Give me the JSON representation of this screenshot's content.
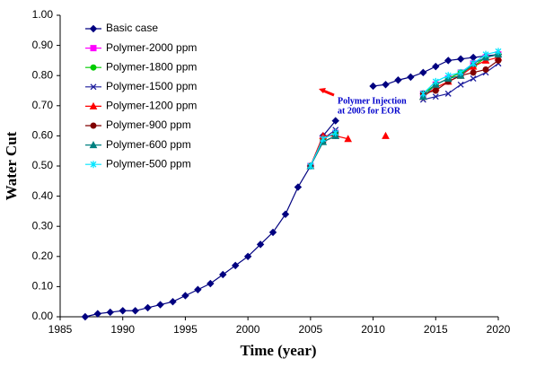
{
  "chart_data": {
    "type": "line",
    "xlabel": "Time (year)",
    "ylabel": "Water Cut",
    "annotation": [
      "Polymer Injection",
      "at 2005 for EOR"
    ],
    "xlim": [
      1985,
      2020
    ],
    "ylim": [
      0,
      1
    ],
    "xticks": [
      1985,
      1990,
      1995,
      2000,
      2005,
      2010,
      2015,
      2020
    ],
    "yticks": [
      {
        "value": 0,
        "label": "0.00"
      },
      {
        "value": 0.1,
        "label": "0.10"
      },
      {
        "value": 0.2,
        "label": "0.20"
      },
      {
        "value": 0.3,
        "label": "0.30"
      },
      {
        "value": 0.4,
        "label": "0.40"
      },
      {
        "value": 0.5,
        "label": "0.50"
      },
      {
        "value": 0.6,
        "label": "0.60"
      },
      {
        "value": 0.7,
        "label": "0.70"
      },
      {
        "value": 0.8,
        "label": "0.80"
      },
      {
        "value": 0.9,
        "label": "0.90"
      },
      {
        "value": 1,
        "label": "1.00"
      }
    ],
    "legend": "upper left",
    "x": [
      1987,
      1988,
      1989,
      1990,
      1991,
      1992,
      1993,
      1994,
      1995,
      1996,
      1997,
      1998,
      1999,
      2000,
      2001,
      2002,
      2003,
      2004,
      2005,
      2006,
      2007,
      2008,
      2009,
      2010,
      2011,
      2012,
      2013,
      2014,
      2015,
      2016,
      2017,
      2018,
      2019,
      2020
    ],
    "series": [
      {
        "name": "Basic case",
        "color": "#000080",
        "marker": "diamond",
        "values": [
          0.0,
          0.01,
          0.015,
          0.02,
          0.02,
          0.03,
          0.04,
          0.05,
          0.07,
          0.09,
          0.11,
          0.14,
          0.17,
          0.2,
          0.24,
          0.28,
          0.34,
          0.43,
          0.5,
          0.6,
          0.65,
          null,
          null,
          0.765,
          0.77,
          0.785,
          0.795,
          0.81,
          0.83,
          0.85,
          0.855,
          0.86,
          0.865,
          0.87
        ]
      },
      {
        "name": "Polymer-2000 ppm",
        "color": "#ff00ff",
        "marker": "square",
        "values": [
          null,
          null,
          null,
          null,
          null,
          null,
          null,
          null,
          null,
          null,
          null,
          null,
          null,
          null,
          null,
          null,
          null,
          null,
          0.5,
          0.59,
          0.61,
          null,
          null,
          null,
          null,
          null,
          null,
          0.74,
          0.77,
          0.79,
          0.81,
          0.84,
          0.86,
          0.87
        ]
      },
      {
        "name": "Polymer-1800 ppm",
        "color": "#00cc00",
        "marker": "circle",
        "values": [
          null,
          null,
          null,
          null,
          null,
          null,
          null,
          null,
          null,
          null,
          null,
          null,
          null,
          null,
          null,
          null,
          null,
          null,
          0.5,
          0.59,
          0.61,
          null,
          null,
          null,
          null,
          null,
          null,
          0.74,
          0.77,
          0.79,
          0.81,
          0.83,
          0.86,
          0.87
        ]
      },
      {
        "name": "Polymer-1500 ppm",
        "color": "#1c1c9c",
        "marker": "x",
        "values": [
          null,
          null,
          null,
          null,
          null,
          null,
          null,
          null,
          null,
          null,
          null,
          null,
          null,
          null,
          null,
          null,
          null,
          null,
          0.5,
          0.59,
          0.62,
          null,
          null,
          null,
          null,
          null,
          null,
          0.72,
          0.73,
          0.74,
          0.77,
          0.79,
          0.81,
          0.84
        ]
      },
      {
        "name": "Polymer-1200 ppm",
        "color": "#ff0000",
        "marker": "triangle",
        "values": [
          null,
          null,
          null,
          null,
          null,
          null,
          null,
          null,
          null,
          null,
          null,
          null,
          null,
          null,
          null,
          null,
          null,
          null,
          0.5,
          0.6,
          0.6,
          0.59,
          null,
          null,
          0.6,
          null,
          null,
          0.73,
          0.76,
          0.78,
          0.8,
          0.83,
          0.85,
          0.86
        ]
      },
      {
        "name": "Polymer-900 ppm",
        "color": "#800000",
        "marker": "circle",
        "values": [
          null,
          null,
          null,
          null,
          null,
          null,
          null,
          null,
          null,
          null,
          null,
          null,
          null,
          null,
          null,
          null,
          null,
          null,
          0.5,
          0.58,
          0.6,
          null,
          null,
          null,
          null,
          null,
          null,
          0.74,
          0.75,
          0.78,
          0.8,
          0.81,
          0.82,
          0.85
        ]
      },
      {
        "name": "Polymer-600 ppm",
        "color": "#008080",
        "marker": "triangle",
        "values": [
          null,
          null,
          null,
          null,
          null,
          null,
          null,
          null,
          null,
          null,
          null,
          null,
          null,
          null,
          null,
          null,
          null,
          null,
          0.5,
          0.58,
          0.6,
          null,
          null,
          null,
          null,
          null,
          null,
          0.73,
          0.77,
          0.79,
          0.8,
          0.84,
          0.86,
          0.87
        ]
      },
      {
        "name": "Polymer-500 ppm",
        "color": "#00e5ff",
        "marker": "star",
        "values": [
          null,
          null,
          null,
          null,
          null,
          null,
          null,
          null,
          null,
          null,
          null,
          null,
          null,
          null,
          null,
          null,
          null,
          null,
          0.5,
          0.59,
          0.61,
          null,
          null,
          null,
          null,
          null,
          null,
          0.74,
          0.78,
          0.8,
          0.81,
          0.84,
          0.87,
          0.88
        ]
      }
    ]
  }
}
